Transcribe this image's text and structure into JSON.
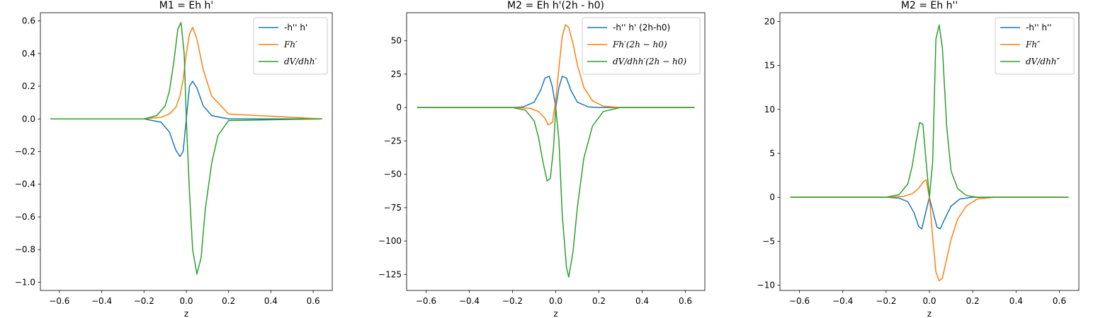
{
  "chart_data": [
    {
      "type": "line",
      "title": "M1 = Eh h'",
      "xlabel": "z",
      "ylabel": "",
      "xlim": [
        -0.69,
        0.69
      ],
      "ylim": [
        -1.05,
        0.65
      ],
      "xticks": [
        -0.6,
        -0.4,
        -0.2,
        0.0,
        0.2,
        0.4,
        0.6
      ],
      "xtick_labels": [
        "−0.6",
        "−0.4",
        "−0.2",
        "0.0",
        "0.2",
        "0.4",
        "0.6"
      ],
      "yticks": [
        -1.0,
        -0.8,
        -0.6,
        -0.4,
        -0.2,
        0.0,
        0.2,
        0.4,
        0.6
      ],
      "ytick_labels": [
        "−1.0",
        "−0.8",
        "−0.6",
        "−0.4",
        "−0.2",
        "0.0",
        "0.2",
        "0.4",
        "0.6"
      ],
      "legend_position": "top-right",
      "grid": false,
      "series": [
        {
          "name": "-h'' h'",
          "color": "#1f77b4",
          "x": [
            -0.64,
            -0.2,
            -0.12,
            -0.08,
            -0.05,
            -0.03,
            -0.015,
            0.0,
            0.015,
            0.03,
            0.05,
            0.08,
            0.12,
            0.2,
            0.64
          ],
          "y": [
            0.0,
            0.0,
            -0.02,
            -0.08,
            -0.19,
            -0.23,
            -0.2,
            0.0,
            0.2,
            0.23,
            0.19,
            0.08,
            0.02,
            0.0,
            0.0
          ]
        },
        {
          "name": "Fh′",
          "color": "#ff7f0e",
          "x": [
            -0.64,
            -0.2,
            -0.12,
            -0.08,
            -0.05,
            -0.03,
            -0.015,
            0.0,
            0.015,
            0.03,
            0.05,
            0.08,
            0.12,
            0.2,
            0.64
          ],
          "y": [
            0.0,
            0.0,
            0.01,
            0.03,
            0.07,
            0.14,
            0.24,
            0.4,
            0.52,
            0.56,
            0.49,
            0.3,
            0.14,
            0.03,
            0.0
          ]
        },
        {
          "name": "dV/dhh′",
          "color": "#2ca02c",
          "x": [
            -0.64,
            -0.2,
            -0.14,
            -0.1,
            -0.08,
            -0.06,
            -0.04,
            -0.025,
            -0.01,
            0.0,
            0.015,
            0.03,
            0.05,
            0.07,
            0.09,
            0.12,
            0.15,
            0.2,
            0.64
          ],
          "y": [
            0.0,
            0.0,
            0.02,
            0.08,
            0.17,
            0.34,
            0.55,
            0.59,
            0.4,
            0.0,
            -0.45,
            -0.8,
            -0.95,
            -0.85,
            -0.55,
            -0.27,
            -0.1,
            -0.01,
            0.0
          ]
        }
      ]
    },
    {
      "type": "line",
      "title": "M2 = Eh h'(2h - h0)",
      "xlabel": "z",
      "ylabel": "",
      "xlim": [
        -0.69,
        0.69
      ],
      "ylim": [
        -137,
        71
      ],
      "xticks": [
        -0.6,
        -0.4,
        -0.2,
        0.0,
        0.2,
        0.4,
        0.6
      ],
      "xtick_labels": [
        "−0.6",
        "−0.4",
        "−0.2",
        "0.0",
        "0.2",
        "0.4",
        "0.6"
      ],
      "yticks": [
        -125,
        -100,
        -75,
        -50,
        -25,
        0,
        25,
        50
      ],
      "ytick_labels": [
        "−125",
        "−100",
        "−75",
        "−50",
        "−25",
        "0",
        "25",
        "50"
      ],
      "legend_position": "top-right",
      "grid": false,
      "series": [
        {
          "name": "-h'' h' (2h-h0)",
          "color": "#1f77b4",
          "x": [
            -0.64,
            -0.2,
            -0.15,
            -0.1,
            -0.07,
            -0.05,
            -0.03,
            -0.015,
            0.0,
            0.015,
            0.03,
            0.05,
            0.07,
            0.1,
            0.15,
            0.2,
            0.64
          ],
          "y": [
            0.0,
            0.0,
            0.5,
            4.0,
            13.0,
            22.0,
            23.5,
            15.0,
            0.0,
            15.0,
            23.5,
            22.0,
            13.0,
            4.0,
            0.5,
            0.0,
            0.0
          ]
        },
        {
          "name": "Fh′(2h − h0)",
          "color": "#ff7f0e",
          "x": [
            -0.64,
            -0.2,
            -0.12,
            -0.08,
            -0.05,
            -0.035,
            -0.015,
            0.0,
            0.015,
            0.03,
            0.045,
            0.06,
            0.08,
            0.1,
            0.13,
            0.17,
            0.22,
            0.3,
            0.64
          ],
          "y": [
            0.0,
            0.0,
            -0.5,
            -3.0,
            -8.0,
            -13.0,
            -11.0,
            5.0,
            30.0,
            53.0,
            62.0,
            60.0,
            48.0,
            32.0,
            15.0,
            5.0,
            1.0,
            0.0,
            0.0
          ]
        },
        {
          "name": "dV/dhh′(2h − h0)",
          "color": "#2ca02c",
          "x": [
            -0.64,
            -0.2,
            -0.14,
            -0.1,
            -0.08,
            -0.06,
            -0.04,
            -0.025,
            -0.01,
            0.0,
            0.015,
            0.03,
            0.05,
            0.06,
            0.08,
            0.1,
            0.13,
            0.17,
            0.22,
            0.3,
            0.64
          ],
          "y": [
            0.0,
            0.0,
            -2.0,
            -10.0,
            -22.0,
            -40.0,
            -55.0,
            -53.0,
            -30.0,
            0.0,
            -25.0,
            -80.0,
            -120.0,
            -127.0,
            -108.0,
            -75.0,
            -38.0,
            -14.0,
            -3.0,
            0.0,
            0.0
          ]
        }
      ]
    },
    {
      "type": "line",
      "title": "M2 = Eh h''",
      "xlabel": "z",
      "ylabel": "",
      "xlim": [
        -0.69,
        0.69
      ],
      "ylim": [
        -10.6,
        21.0
      ],
      "xticks": [
        -0.6,
        -0.4,
        -0.2,
        0.0,
        0.2,
        0.4,
        0.6
      ],
      "xtick_labels": [
        "−0.6",
        "−0.4",
        "−0.2",
        "0.0",
        "0.2",
        "0.4",
        "0.6"
      ],
      "yticks": [
        -10,
        -5,
        0,
        5,
        10,
        15,
        20
      ],
      "ytick_labels": [
        "−10",
        "−5",
        "0",
        "5",
        "10",
        "15",
        "20"
      ],
      "legend_position": "top-right",
      "grid": false,
      "series": [
        {
          "name": "-h'' h''",
          "color": "#1f77b4",
          "x": [
            -0.64,
            -0.2,
            -0.14,
            -0.1,
            -0.07,
            -0.05,
            -0.035,
            -0.015,
            0.0,
            0.015,
            0.035,
            0.05,
            0.07,
            0.1,
            0.14,
            0.2,
            0.64
          ],
          "y": [
            0.0,
            0.0,
            -0.1,
            -0.5,
            -1.8,
            -3.3,
            -3.6,
            -1.5,
            0.0,
            -1.5,
            -3.4,
            -3.6,
            -2.5,
            -1.0,
            -0.2,
            0.0,
            0.0
          ]
        },
        {
          "name": "Fh″",
          "color": "#ff7f0e",
          "x": [
            -0.64,
            -0.2,
            -0.12,
            -0.08,
            -0.05,
            -0.03,
            -0.015,
            0.0,
            0.015,
            0.03,
            0.045,
            0.06,
            0.08,
            0.1,
            0.13,
            0.17,
            0.22,
            0.3,
            0.64
          ],
          "y": [
            0.0,
            0.0,
            0.1,
            0.4,
            1.0,
            1.7,
            2.0,
            0.0,
            -4.5,
            -8.5,
            -9.5,
            -9.2,
            -7.0,
            -4.8,
            -2.5,
            -1.0,
            -0.2,
            0.0,
            0.0
          ]
        },
        {
          "name": "dV/dhh″",
          "color": "#2ca02c",
          "x": [
            -0.64,
            -0.2,
            -0.14,
            -0.1,
            -0.08,
            -0.06,
            -0.045,
            -0.03,
            -0.015,
            0.0,
            0.015,
            0.03,
            0.045,
            0.06,
            0.08,
            0.1,
            0.13,
            0.17,
            0.22,
            0.3,
            0.64
          ],
          "y": [
            0.0,
            0.0,
            0.3,
            1.5,
            3.5,
            6.5,
            8.5,
            8.3,
            4.0,
            0.0,
            4.0,
            18.0,
            19.6,
            17.0,
            8.0,
            3.0,
            1.0,
            0.2,
            0.0,
            0.0,
            0.0
          ]
        }
      ]
    }
  ]
}
